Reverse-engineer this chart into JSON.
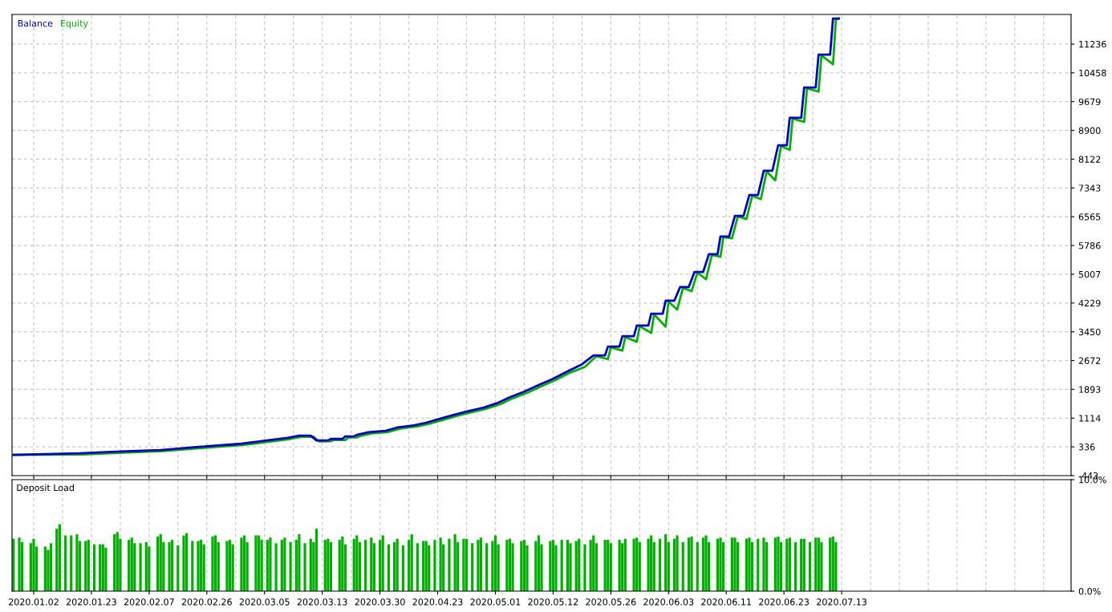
{
  "chart_data": [
    {
      "type": "line",
      "ylim": [
        -443,
        12039
      ],
      "categories": [
        null,
        null,
        null,
        null,
        null,
        null,
        null,
        "2020.01.02",
        null,
        null,
        null,
        null,
        null,
        null,
        null,
        null,
        null,
        null,
        null,
        null,
        null,
        null,
        null,
        null,
        null,
        null,
        null,
        "2020.01.23",
        null,
        null,
        null,
        null,
        null,
        null,
        null,
        null,
        null,
        null,
        null,
        null,
        null,
        null,
        null,
        null,
        null,
        null,
        null,
        "2020.02.07",
        null,
        null,
        null,
        null,
        null,
        null,
        null,
        null,
        null,
        null,
        null,
        null,
        null,
        null,
        null,
        null,
        null,
        null,
        null,
        "2020.02.26",
        null,
        null,
        null,
        null,
        null,
        null,
        null,
        null,
        null,
        null,
        null,
        null,
        null,
        null,
        null,
        null,
        null,
        null,
        null,
        "2020.03.05",
        null,
        null,
        null,
        null,
        null,
        null,
        null,
        null,
        null,
        null,
        null,
        null,
        null,
        null,
        null,
        null,
        null,
        null,
        null,
        "2020.03.13",
        null,
        null,
        null,
        null,
        null,
        null,
        null,
        null,
        null,
        null,
        null,
        null,
        null,
        null,
        null,
        null,
        null,
        null,
        null,
        "2020.03.30",
        null,
        null,
        null,
        null,
        null,
        null,
        null,
        null,
        null,
        null,
        null,
        null,
        null,
        null,
        null,
        null,
        null,
        null,
        null,
        "2020.04.23",
        null,
        null,
        null,
        null,
        null,
        null,
        null,
        null,
        null,
        null,
        null,
        null,
        null,
        null,
        null,
        null,
        null,
        null,
        null,
        "2020.05.01",
        null,
        null,
        null,
        null,
        null,
        null,
        null,
        null,
        null,
        null,
        null,
        null,
        null,
        null,
        null,
        null,
        null,
        null,
        null,
        "2020.05.12",
        null,
        null,
        null,
        null,
        null,
        null,
        null,
        null,
        null,
        null,
        null,
        null,
        null,
        null,
        null,
        null,
        null,
        null,
        null,
        "2020.05.26",
        null,
        null,
        null,
        null,
        null,
        null,
        null,
        null,
        null,
        null,
        null,
        null,
        null,
        null,
        null,
        null,
        null,
        null,
        null,
        "2020.06.03",
        null,
        null,
        null,
        null,
        null,
        null,
        null,
        null,
        null,
        null,
        null,
        null,
        null,
        null,
        null,
        null,
        null,
        null,
        null,
        "2020.06.11",
        null,
        null,
        null,
        null,
        null,
        null,
        null,
        null,
        null,
        null,
        null,
        null,
        null,
        null,
        null,
        null,
        null,
        null,
        null,
        "2020.06.23",
        null,
        null,
        null,
        null,
        null,
        null,
        null,
        null,
        null,
        null,
        null,
        null,
        null,
        null,
        null,
        null,
        null,
        null,
        null,
        "2020.07.13",
        null,
        null,
        null,
        null,
        null,
        null,
        null,
        null,
        null,
        null,
        null,
        null,
        null,
        null,
        null,
        null,
        null,
        null,
        null,
        null,
        null,
        null,
        null,
        null,
        null,
        null,
        null,
        null,
        null,
        null,
        null,
        null,
        null,
        null,
        null,
        null,
        null,
        null,
        null,
        null,
        null,
        null,
        null,
        null,
        null,
        null,
        null,
        null,
        null,
        null,
        null,
        null,
        null,
        null,
        null,
        null,
        null,
        null,
        null,
        null,
        null,
        null,
        null,
        null,
        null,
        null,
        null,
        null,
        null,
        null,
        null,
        null,
        null,
        null,
        null,
        null,
        null,
        null,
        null
      ],
      "yticks": [
        -443,
        336,
        1114,
        1893,
        2672,
        3450,
        4229,
        5007,
        5786,
        6565,
        7343,
        8122,
        8900,
        9679,
        10458,
        11236
      ],
      "tick_labels": "y",
      "grid": true,
      "legend": "top left",
      "series": [
        {
          "name": "Balance",
          "color": "#0000c0",
          "values": [
            120,
            null,
            null,
            null,
            null,
            null,
            null,
            null,
            null,
            null,
            null,
            null,
            null,
            null,
            null,
            null,
            null,
            null,
            null,
            null,
            null,
            null,
            null,
            160,
            null,
            null,
            null,
            null,
            null,
            null,
            null,
            null,
            null,
            null,
            null,
            null,
            null,
            210,
            null,
            null,
            null,
            null,
            null,
            null,
            null,
            null,
            null,
            null,
            null,
            null,
            null,
            250,
            null,
            null,
            null,
            null,
            null,
            null,
            null,
            null,
            null,
            null,
            null,
            null,
            null,
            340,
            null,
            null,
            null,
            null,
            null,
            null,
            null,
            null,
            null,
            null,
            null,
            null,
            null,
            420,
            null,
            null,
            null,
            null,
            470,
            null,
            null,
            null,
            null,
            null,
            530,
            null,
            null,
            null,
            null,
            580,
            null,
            null,
            null,
            640,
            null,
            null,
            null,
            640,
            null,
            510,
            null,
            null,
            null,
            510,
            550,
            null,
            null,
            null,
            550,
            620,
            null,
            null,
            620,
            660,
            null,
            null,
            null,
            730,
            null,
            null,
            null,
            null,
            null,
            770,
            null,
            null,
            null,
            860,
            null,
            null,
            null,
            null,
            null,
            920,
            null,
            null,
            null,
            990,
            null,
            null,
            null,
            null,
            1100,
            null,
            null,
            null,
            null,
            1210,
            null,
            null,
            null,
            1290,
            null,
            null,
            null,
            null,
            null,
            1400,
            null,
            null,
            null,
            null,
            1530,
            null,
            null,
            null,
            1680,
            null,
            null,
            null,
            null,
            1830,
            null,
            null,
            null,
            null,
            2010,
            null,
            null,
            null,
            null,
            2180,
            null,
            null,
            null,
            null,
            2380,
            null,
            null,
            null,
            null,
            2570,
            null,
            null,
            null,
            2810,
            null,
            null,
            null,
            2810,
            3050,
            null,
            null,
            null,
            3050,
            3330,
            null,
            null,
            null,
            3330,
            3620,
            null,
            null,
            null,
            3620,
            3940,
            null,
            null,
            null,
            3940,
            4290,
            null,
            null,
            4290,
            null,
            4660,
            null,
            null,
            4660,
            null,
            5070,
            null,
            null,
            5070,
            null,
            5550,
            null,
            null,
            5550,
            6030,
            null,
            null,
            6030,
            null,
            6590,
            null,
            null,
            6590,
            null,
            7150,
            null,
            null,
            7150,
            null,
            7810,
            null,
            null,
            7810,
            null,
            8500,
            null,
            null,
            8500,
            9240,
            null,
            null,
            null,
            9240,
            10060,
            null,
            null,
            null,
            10060,
            10950,
            null,
            null,
            null,
            10950,
            11930,
            null,
            11930,
            null,
            null,
            null,
            null,
            null,
            null,
            null,
            null,
            null,
            null,
            null,
            null,
            null,
            null,
            null,
            null,
            null,
            null,
            null,
            null,
            null,
            null,
            null,
            null,
            null,
            null,
            null,
            null,
            null,
            null,
            null,
            null,
            null,
            null,
            null,
            null,
            null,
            null,
            null,
            null,
            null,
            null,
            null,
            null,
            null,
            null,
            null,
            null,
            null,
            null,
            null,
            null,
            null,
            null,
            null,
            null,
            null,
            null,
            null,
            null,
            null,
            null,
            null,
            null,
            null,
            null,
            null,
            null,
            null,
            null,
            null,
            null,
            null,
            null,
            null,
            null,
            null,
            null,
            null,
            null
          ]
        },
        {
          "name": "Equity",
          "color": "#00b000",
          "values": [
            120,
            null,
            null,
            null,
            null,
            null,
            null,
            null,
            null,
            null,
            null,
            null,
            null,
            null,
            null,
            null,
            null,
            null,
            null,
            null,
            null,
            null,
            null,
            null,
            130,
            null,
            null,
            null,
            null,
            null,
            null,
            null,
            null,
            null,
            null,
            null,
            null,
            null,
            180,
            null,
            null,
            null,
            null,
            null,
            null,
            null,
            null,
            null,
            null,
            null,
            null,
            null,
            220,
            null,
            null,
            null,
            null,
            null,
            null,
            null,
            null,
            null,
            null,
            null,
            null,
            null,
            310,
            null,
            null,
            null,
            null,
            null,
            null,
            null,
            null,
            null,
            null,
            null,
            null,
            null,
            390,
            null,
            null,
            null,
            null,
            440,
            null,
            null,
            null,
            null,
            null,
            500,
            null,
            null,
            null,
            null,
            550,
            null,
            null,
            null,
            610,
            null,
            null,
            null,
            610,
            null,
            480,
            null,
            null,
            null,
            490,
            520,
            null,
            null,
            null,
            520,
            590,
            null,
            null,
            590,
            630,
            null,
            null,
            null,
            700,
            null,
            null,
            null,
            null,
            null,
            740,
            null,
            null,
            null,
            830,
            null,
            null,
            null,
            null,
            null,
            890,
            null,
            null,
            null,
            960,
            null,
            null,
            null,
            null,
            1070,
            null,
            null,
            null,
            null,
            1180,
            null,
            null,
            null,
            1260,
            null,
            null,
            null,
            null,
            null,
            1370,
            null,
            null,
            null,
            null,
            1500,
            null,
            null,
            null,
            1650,
            null,
            null,
            null,
            null,
            1800,
            null,
            null,
            null,
            null,
            1980,
            null,
            null,
            null,
            null,
            2150,
            null,
            null,
            null,
            null,
            2350,
            null,
            null,
            null,
            null,
            2500,
            null,
            null,
            null,
            2790,
            null,
            null,
            null,
            2710,
            3030,
            null,
            null,
            null,
            2940,
            3310,
            null,
            null,
            null,
            3180,
            3600,
            null,
            null,
            null,
            3420,
            3920,
            null,
            null,
            null,
            3590,
            4270,
            null,
            null,
            4050,
            null,
            4640,
            null,
            null,
            4550,
            null,
            5050,
            null,
            null,
            4870,
            null,
            5530,
            null,
            null,
            5480,
            6010,
            null,
            null,
            5980,
            null,
            6570,
            null,
            null,
            6500,
            null,
            7130,
            null,
            null,
            7040,
            null,
            7790,
            null,
            null,
            7550,
            null,
            8480,
            null,
            null,
            8370,
            9220,
            null,
            null,
            null,
            9130,
            10040,
            null,
            null,
            null,
            9950,
            10930,
            null,
            null,
            null,
            10690,
            11900,
            11930,
            null,
            null,
            null,
            null,
            null,
            null,
            null,
            null,
            null,
            null,
            null,
            null,
            null,
            null,
            null,
            null,
            null,
            null,
            null,
            null,
            null,
            null,
            null,
            null,
            null,
            null,
            null,
            null,
            null,
            null,
            null,
            null,
            null,
            null,
            null,
            null,
            null,
            null,
            null,
            null,
            null,
            null,
            null,
            null,
            null,
            null,
            null,
            null,
            null,
            null,
            null,
            null,
            null,
            null,
            null,
            null,
            null,
            null,
            null,
            null,
            null,
            null,
            null,
            null,
            null,
            null,
            null,
            null,
            null,
            null,
            null,
            null,
            null,
            null,
            null,
            null,
            null,
            null,
            null,
            null
          ]
        }
      ]
    },
    {
      "type": "bar",
      "title": "Deposit Load",
      "ylim": [
        0,
        10
      ],
      "categories": [
        null,
        null,
        null,
        null,
        null,
        null,
        null,
        "2020.01.02",
        null,
        null,
        null,
        null,
        null,
        null,
        null,
        null,
        null,
        null,
        null,
        null,
        null,
        null,
        null,
        null,
        null,
        null,
        null,
        "2020.01.23",
        null,
        null,
        null,
        null,
        null,
        null,
        null,
        null,
        null,
        null,
        null,
        null,
        null,
        null,
        null,
        null,
        null,
        null,
        null,
        "2020.02.07",
        null,
        null,
        null,
        null,
        null,
        null,
        null,
        null,
        null,
        null,
        null,
        null,
        null,
        null,
        null,
        null,
        null,
        null,
        null,
        "2020.02.26",
        null,
        null,
        null,
        null,
        null,
        null,
        null,
        null,
        null,
        null,
        null,
        null,
        null,
        null,
        null,
        null,
        null,
        null,
        null,
        "2020.03.05",
        null,
        null,
        null,
        null,
        null,
        null,
        null,
        null,
        null,
        null,
        null,
        null,
        null,
        null,
        null,
        null,
        null,
        null,
        null,
        "2020.03.13",
        null,
        null,
        null,
        null,
        null,
        null,
        null,
        null,
        null,
        null,
        null,
        null,
        null,
        null,
        null,
        null,
        null,
        null,
        null,
        "2020.03.30",
        null,
        null,
        null,
        null,
        null,
        null,
        null,
        null,
        null,
        null,
        null,
        null,
        null,
        null,
        null,
        null,
        null,
        null,
        null,
        "2020.04.23",
        null,
        null,
        null,
        null,
        null,
        null,
        null,
        null,
        null,
        null,
        null,
        null,
        null,
        null,
        null,
        null,
        null,
        null,
        null,
        "2020.05.01",
        null,
        null,
        null,
        null,
        null,
        null,
        null,
        null,
        null,
        null,
        null,
        null,
        null,
        null,
        null,
        null,
        null,
        null,
        null,
        "2020.05.12",
        null,
        null,
        null,
        null,
        null,
        null,
        null,
        null,
        null,
        null,
        null,
        null,
        null,
        null,
        null,
        null,
        null,
        null,
        null,
        "2020.05.26",
        null,
        null,
        null,
        null,
        null,
        null,
        null,
        null,
        null,
        null,
        null,
        null,
        null,
        null,
        null,
        null,
        null,
        null,
        null,
        "2020.06.03",
        null,
        null,
        null,
        null,
        null,
        null,
        null,
        null,
        null,
        null,
        null,
        null,
        null,
        null,
        null,
        null,
        null,
        null,
        null,
        "2020.06.11",
        null,
        null,
        null,
        null,
        null,
        null,
        null,
        null,
        null,
        null,
        null,
        null,
        null,
        null,
        null,
        null,
        null,
        null,
        null,
        "2020.06.23",
        null,
        null,
        null,
        null,
        null,
        null,
        null,
        null,
        null,
        null,
        null,
        null,
        null,
        null,
        null,
        null,
        null,
        null,
        null,
        "2020.07.13",
        null,
        null,
        null,
        null,
        null,
        null,
        null,
        null,
        null,
        null,
        null,
        null,
        null,
        null,
        null,
        null,
        null,
        null,
        null,
        null,
        null,
        null,
        null,
        null,
        null,
        null,
        null,
        null,
        null,
        null,
        null,
        null,
        null,
        null,
        null,
        null,
        null,
        null,
        null,
        null,
        null,
        null,
        null,
        null,
        null,
        null,
        null,
        null,
        null,
        null,
        null,
        null,
        null,
        null,
        null,
        null,
        null,
        null,
        null,
        null,
        null,
        null,
        null,
        null,
        null,
        null,
        null,
        null,
        null,
        null,
        null,
        null,
        null,
        null,
        null,
        null,
        null,
        null,
        null
      ],
      "yticks": [
        {
          "value": 0,
          "label": "0.0%"
        },
        {
          "value": 10,
          "label": "10.0%"
        }
      ],
      "grid": "x",
      "series": [
        {
          "color": "#00b000",
          "values": [
            4.7,
            null,
            4.8,
            4.4,
            null,
            null,
            4.3,
            4.7,
            4.0,
            null,
            null,
            4.0,
            3.7,
            4.3,
            null,
            5.6,
            6.0,
            null,
            5.0,
            null,
            5.0,
            null,
            5.1,
            4.5,
            null,
            4.5,
            4.6,
            null,
            4.2,
            null,
            4.2,
            4.2,
            3.9,
            null,
            null,
            5.1,
            5.3,
            4.7,
            null,
            null,
            4.6,
            4.8,
            4.3,
            null,
            4.3,
            null,
            4.4,
            4.0,
            null,
            null,
            4.9,
            5.1,
            4.4,
            null,
            4.4,
            4.6,
            null,
            4.1,
            null,
            5.0,
            5.2,
            null,
            4.5,
            null,
            4.5,
            4.6,
            4.2,
            null,
            null,
            4.9,
            5.0,
            4.4,
            null,
            null,
            4.5,
            4.6,
            4.2,
            null,
            null,
            4.8,
            5.0,
            4.4,
            null,
            null,
            5.0,
            5.0,
            4.6,
            null,
            4.6,
            4.8,
            null,
            4.3,
            null,
            4.6,
            4.8,
            null,
            4.4,
            null,
            4.6,
            5.1,
            null,
            4.3,
            null,
            4.7,
            4.4,
            5.6,
            null,
            null,
            4.6,
            4.7,
            4.4,
            null,
            null,
            4.6,
            4.9,
            4.2,
            null,
            null,
            4.7,
            5.0,
            4.4,
            null,
            4.6,
            null,
            4.8,
            4.3,
            null,
            4.6,
            5.0,
            null,
            4.2,
            null,
            4.4,
            4.7,
            null,
            4.1,
            null,
            4.6,
            5.1,
            null,
            4.3,
            null,
            4.5,
            4.5,
            4.1,
            null,
            4.6,
            null,
            4.8,
            4.2,
            null,
            4.7,
            null,
            5.1,
            4.4,
            null,
            4.7,
            4.7,
            null,
            4.3,
            null,
            4.6,
            4.8,
            null,
            4.3,
            null,
            4.5,
            5.0,
            4.2,
            null,
            null,
            4.6,
            4.7,
            4.3,
            null,
            null,
            4.5,
            4.6,
            4.1,
            null,
            null,
            4.5,
            5.0,
            4.2,
            null,
            null,
            4.5,
            4.6,
            4.1,
            null,
            4.6,
            null,
            4.6,
            4.3,
            null,
            4.5,
            4.7,
            null,
            4.2,
            null,
            4.6,
            5.0,
            4.3,
            null,
            null,
            4.6,
            4.6,
            4.3,
            null,
            null,
            4.6,
            4.3,
            4.7,
            null,
            null,
            4.7,
            4.8,
            4.4,
            null,
            null,
            4.7,
            5.0,
            4.4,
            null,
            4.7,
            null,
            5.1,
            4.4,
            null,
            4.7,
            5.0,
            null,
            4.4,
            null,
            4.8,
            4.9,
            null,
            4.4,
            null,
            4.8,
            5.0,
            4.4,
            null,
            null,
            4.7,
            4.8,
            4.4,
            null,
            null,
            4.8,
            4.8,
            4.4,
            null,
            null,
            4.7,
            4.8,
            4.4,
            null,
            4.7,
            null,
            4.8,
            4.4,
            null,
            null,
            4.8,
            4.9,
            4.4,
            null,
            4.7,
            4.8,
            null,
            4.4,
            null,
            4.7,
            4.7,
            null,
            4.4,
            null,
            4.8,
            4.8,
            4.4,
            null,
            null,
            4.8,
            4.9,
            4.4,
            null,
            null,
            null,
            null,
            null,
            null,
            null,
            null,
            null,
            null,
            null,
            null,
            null,
            null,
            null,
            null,
            null,
            null,
            null,
            null,
            null,
            null,
            null,
            null,
            null,
            null,
            null,
            null,
            null,
            null,
            null,
            null,
            null,
            null,
            null,
            null,
            null,
            null,
            null,
            null,
            null,
            null,
            null,
            null,
            null,
            null,
            null,
            null,
            null,
            null,
            null,
            null,
            null,
            null,
            null,
            null,
            null,
            null,
            null,
            null,
            null,
            null,
            null,
            null,
            null,
            null,
            null,
            null,
            null,
            null,
            null,
            null,
            null,
            null,
            null,
            null,
            null,
            null,
            null,
            null,
            null
          ]
        }
      ]
    }
  ]
}
